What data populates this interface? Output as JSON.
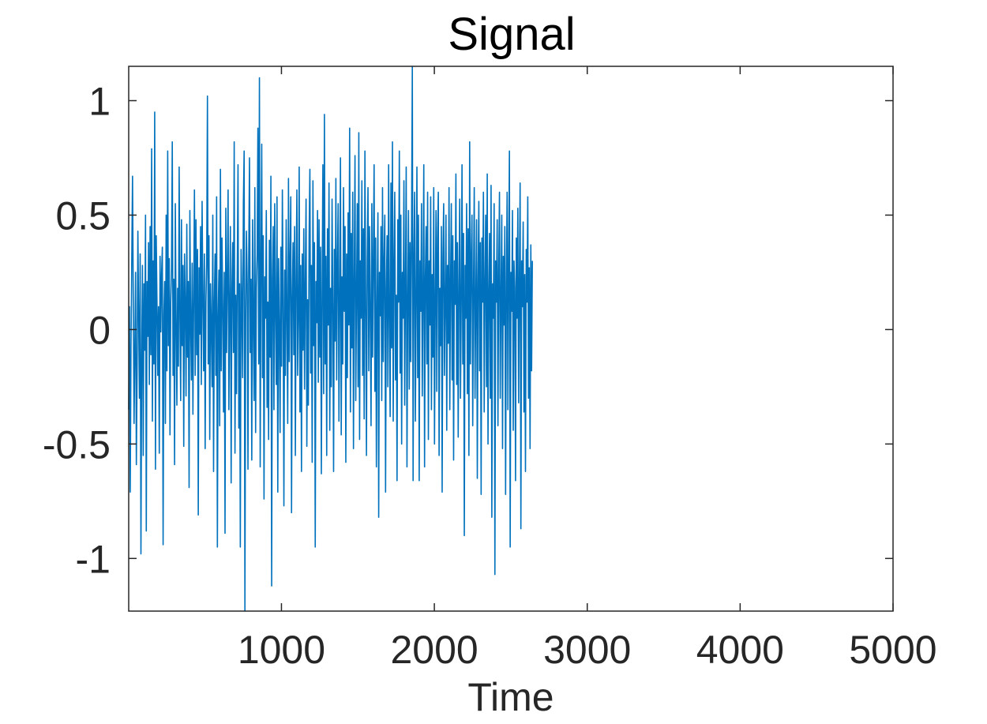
{
  "chart_data": {
    "type": "line",
    "title": "Signal",
    "xlabel": "Time",
    "ylabel": "",
    "xlim": [
      1,
      5000
    ],
    "ylim": [
      -1.23,
      1.15
    ],
    "xticks": [
      1000,
      2000,
      3000,
      4000,
      5000
    ],
    "xtick_labels": [
      "1000",
      "2000",
      "3000",
      "4000",
      "5000"
    ],
    "yticks": [
      1,
      0.5,
      0,
      -0.5,
      -1
    ],
    "ytick_labels": [
      "1",
      "0.5",
      "0",
      "-0.5",
      "-1"
    ],
    "grid": false,
    "series": [
      {
        "color": "#0072BD",
        "x_start": 1,
        "x_step": 5,
        "values": [
          -0.35,
          0.1,
          -0.71,
          -0.08,
          0.3,
          0.67,
          0.12,
          -0.41,
          -0.09,
          0.25,
          -0.59,
          -0.18,
          0.43,
          0.05,
          -0.3,
          0.33,
          -0.98,
          -0.12,
          0.28,
          -0.55,
          0.2,
          -0.09,
          0.5,
          -0.88,
          0.21,
          -0.03,
          0.38,
          -0.24,
          0.45,
          -0.11,
          0.79,
          -0.4,
          0.3,
          -0.15,
          0.95,
          -0.61,
          0.41,
          0.12,
          -0.2,
          0.1,
          -0.54,
          0.32,
          -0.01,
          0.24,
          0.36,
          -0.94,
          0.06,
          0.21,
          -0.41,
          0.5,
          -0.18,
          0.78,
          -0.07,
          0.31,
          -0.46,
          0.12,
          0.27,
          0.82,
          -0.2,
          0.22,
          -0.59,
          0.55,
          0.04,
          -0.33,
          0.18,
          -0.16,
          0.71,
          0.05,
          -0.31,
          0.48,
          -0.07,
          0.28,
          -0.51,
          0.33,
          0.12,
          -0.29,
          0.46,
          -0.12,
          0.21,
          -0.69,
          0.52,
          0.04,
          -0.22,
          0.29,
          -0.37,
          0.14,
          0.61,
          -0.2,
          0.48,
          -0.11,
          0.35,
          -0.81,
          0.27,
          -0.02,
          0.45,
          -0.24,
          0.56,
          0.13,
          -0.18,
          0.33,
          -0.52,
          0.12,
          0.29,
          1.02,
          -0.15,
          0.41,
          -0.48,
          0.2,
          0.02,
          -0.25,
          0.5,
          -0.62,
          0.12,
          0.33,
          -0.2,
          0.58,
          -0.95,
          0.06,
          0.26,
          -0.42,
          0.7,
          -0.18,
          0.4,
          0.1,
          -0.36,
          0.25,
          -0.89,
          0.53,
          -0.1,
          0.22,
          0.61,
          -0.35,
          0.1,
          0.45,
          -0.67,
          0.18,
          0.38,
          -0.1,
          0.82,
          -0.54,
          0.15,
          -0.28,
          0.25,
          0.72,
          -0.43,
          0.2,
          -0.95,
          0.35,
          0.12,
          -0.21,
          0.55,
          0.78,
          -1.23,
          0.05,
          0.43,
          0.2,
          -0.61,
          0.31,
          0.75,
          -0.1,
          0.22,
          -0.57,
          0.48,
          0.05,
          -0.31,
          0.62,
          -0.45,
          0.18,
          0.33,
          0.88,
          -0.15,
          1.1,
          -0.6,
          0.27,
          0.81,
          -0.21,
          0.41,
          -0.74,
          0.23,
          0.05,
          0.52,
          -0.34,
          0.12,
          -0.48,
          0.39,
          -0.12,
          0.67,
          -1.12,
          0.22,
          0.45,
          -0.35,
          0.55,
          0.09,
          -0.24,
          0.58,
          -0.71,
          0.31,
          0.02,
          -0.45,
          0.36,
          -0.16,
          0.61,
          0.12,
          -0.77,
          0.26,
          -0.2,
          0.48,
          0.05,
          -0.41,
          0.66,
          -0.14,
          0.3,
          0.58,
          -0.8,
          0.14,
          0.38,
          -0.11,
          0.45,
          -0.55,
          0.22,
          0.61,
          -0.2,
          0.05,
          0.71,
          -0.36,
          0.28,
          -0.62,
          0.33,
          -0.09,
          0.44,
          -0.26,
          0.2,
          0.57,
          -0.51,
          0.13,
          -0.33,
          0.41,
          0.7,
          -0.19,
          0.28,
          -0.58,
          0.65,
          -0.07,
          0.38,
          -0.95,
          0.21,
          0.03,
          0.52,
          -0.23,
          0.48,
          -0.12,
          0.36,
          -0.63,
          0.15,
          0.72,
          -0.28,
          0.94,
          -0.15,
          0.32,
          -0.55,
          0.44,
          0.02,
          0.64,
          -0.44,
          0.18,
          -0.25,
          0.57,
          0.12,
          -0.62,
          0.35,
          -0.05,
          0.66,
          -0.22,
          0.28,
          0.55,
          -0.4,
          0.12,
          0.75,
          -0.46,
          0.23,
          -0.15,
          0.62,
          0.08,
          0.45,
          -0.58,
          0.33,
          -0.21,
          0.51,
          0.02,
          0.88,
          -0.36,
          0.42,
          -0.08,
          0.6,
          -0.52,
          0.22,
          0.76,
          -0.31,
          0.14,
          0.55,
          -0.25,
          0.86,
          -0.48,
          0.3,
          0.05,
          0.65,
          -0.2,
          0.44,
          -0.39,
          0.78,
          0.12,
          -0.55,
          0.31,
          0.62,
          -0.18,
          0.45,
          0.08,
          -0.42,
          0.55,
          -0.12,
          0.3,
          0.72,
          -0.27,
          0.4,
          -0.6,
          0.12,
          0.51,
          -0.82,
          0.25,
          0.06,
          0.45,
          -0.31,
          0.62,
          -0.14,
          0.3,
          0.5,
          -0.71,
          0.18,
          0.41,
          -0.25,
          0.72,
          0.05,
          -0.38,
          0.64,
          -0.08,
          0.82,
          -0.4,
          0.28,
          0.6,
          -0.22,
          0.15,
          -0.66,
          0.48,
          0.12,
          0.78,
          -0.19,
          0.5,
          -0.5,
          0.25,
          0.05,
          0.65,
          -0.33,
          0.18,
          0.71,
          -0.6,
          0.12,
          0.52,
          -0.26,
          0.38,
          -0.14,
          0.45,
          1.15,
          -0.66,
          0.3,
          0.6,
          -0.4,
          0.12,
          0.71,
          -0.21,
          0.5,
          -0.66,
          0.3,
          0.08,
          0.55,
          -0.29,
          0.16,
          0.72,
          -0.6,
          0.22,
          0.45,
          -0.15,
          0.6,
          -0.48,
          0.3,
          0.02,
          0.58,
          -0.35,
          0.24,
          -0.12,
          0.62,
          -0.5,
          0.12,
          0.52,
          -0.27,
          0.4,
          0.6,
          -0.55,
          0.18,
          -0.07,
          0.45,
          -0.71,
          0.31,
          0.55,
          -0.2,
          0.12,
          0.5,
          -0.44,
          0.28,
          -0.06,
          0.62,
          -0.35,
          0.2,
          0.55,
          -0.22,
          0.41,
          -0.57,
          0.3,
          0.11,
          0.68,
          -0.24,
          0.38,
          -0.47,
          0.2,
          0.57,
          -0.3,
          0.12,
          0.72,
          -0.15,
          0.42,
          -0.9,
          0.28,
          0.05,
          0.55,
          -0.28,
          0.44,
          -0.55,
          0.82,
          -0.15,
          0.3,
          0.5,
          -0.42,
          0.18,
          0.62,
          -0.3,
          0.12,
          0.48,
          -0.65,
          0.22,
          0.56,
          -0.18,
          0.38,
          -0.72,
          0.4,
          0.12,
          0.6,
          -0.36,
          0.2,
          0.5,
          -0.25,
          0.68,
          -0.5,
          0.15,
          0.42,
          -0.3,
          0.63,
          -0.82,
          0.2,
          0.05,
          0.55,
          -1.07,
          0.3,
          0.12,
          0.48,
          -0.42,
          0.25,
          0.6,
          -0.3,
          0.14,
          0.5,
          -0.52,
          0.32,
          0.02,
          0.45,
          -0.72,
          0.2,
          0.6,
          -0.35,
          0.3,
          0.78,
          -0.95,
          0.25,
          0.08,
          0.52,
          -0.44,
          0.3,
          0.18,
          -0.66,
          0.4,
          0.05,
          0.53,
          -0.32,
          0.22,
          0.64,
          -0.87,
          0.3,
          0.1,
          0.47,
          -0.36,
          0.24,
          -0.62,
          0.35,
          0.12,
          0.58,
          -0.3,
          0.27,
          -0.52,
          0.37,
          -0.18,
          0.3
        ]
      }
    ]
  }
}
